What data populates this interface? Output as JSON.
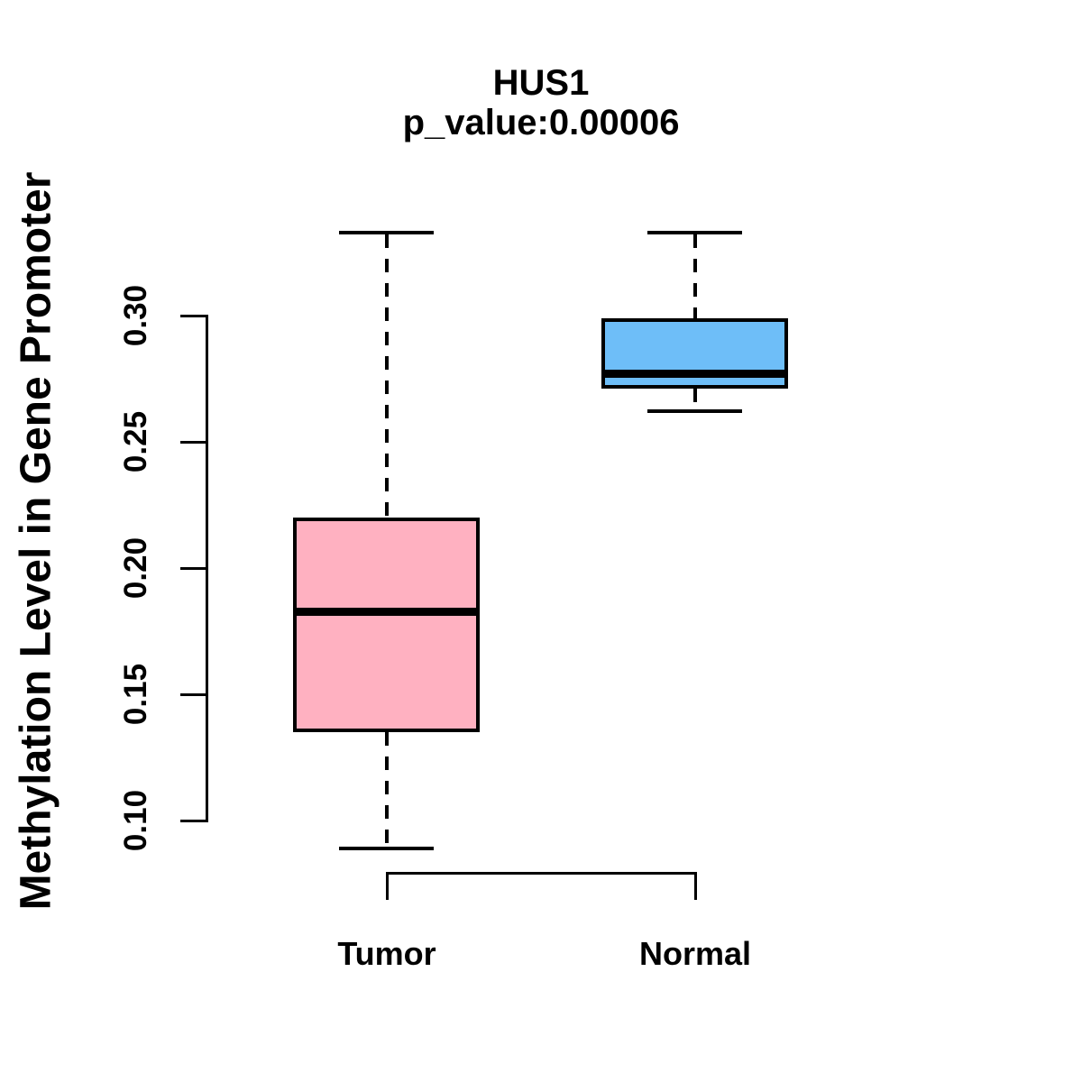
{
  "chart_data": {
    "type": "boxplot",
    "title": "HUS1",
    "subtitle": "p_value:0.00006",
    "ylabel": "Methylation Level in Gene Promoter",
    "xlabel": "",
    "categories": [
      "Tumor",
      "Normal"
    ],
    "y_ticks": [
      0.1,
      0.15,
      0.2,
      0.25,
      0.3
    ],
    "y_tick_labels": [
      "0.10",
      "0.15",
      "0.20",
      "0.25",
      "0.30"
    ],
    "ylim": [
      0.089,
      0.333
    ],
    "grid": false,
    "legend": "none",
    "orientation": "vertical",
    "series": [
      {
        "name": "Tumor",
        "fill_color": "#FFB1C1",
        "whisker_low": 0.089,
        "q1": 0.135,
        "median": 0.183,
        "q3": 0.22,
        "whisker_high": 0.333
      },
      {
        "name": "Normal",
        "fill_color": "#6EBEF8",
        "whisker_low": 0.262,
        "q1": 0.271,
        "median": 0.277,
        "q3": 0.299,
        "whisker_high": 0.333
      }
    ],
    "stroke_color": "#000000",
    "background_color": "#FFFFFF"
  }
}
